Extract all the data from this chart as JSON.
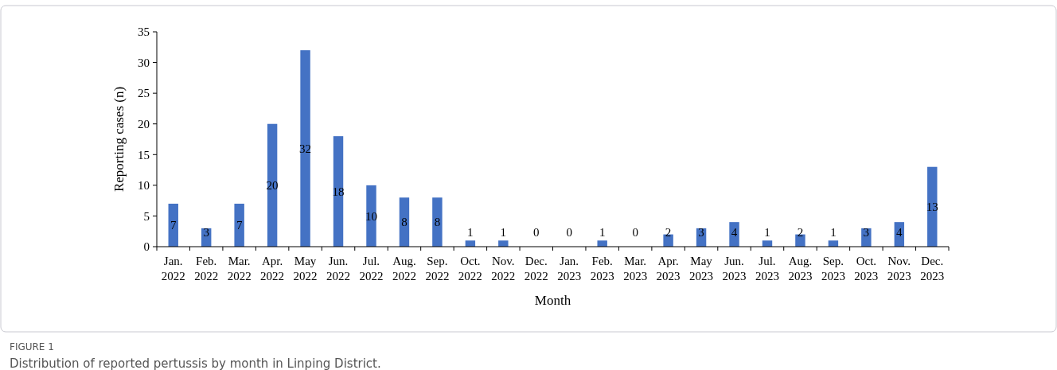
{
  "chart_data": {
    "type": "bar",
    "xlabel": "Month",
    "ylabel": "Reporting cases (n)",
    "categories": [
      "Jan. 2022",
      "Feb. 2022",
      "Mar. 2022",
      "Apr. 2022",
      "May 2022",
      "Jun. 2022",
      "Jul. 2022",
      "Aug. 2022",
      "Sep. 2022",
      "Oct. 2022",
      "Nov. 2022",
      "Dec. 2022",
      "Jan. 2023",
      "Feb. 2023",
      "Mar. 2023",
      "Apr. 2023",
      "May 2023",
      "Jun. 2023",
      "Jul. 2023",
      "Aug. 2023",
      "Sep. 2023",
      "Oct. 2023",
      "Nov. 2023",
      "Dec. 2023"
    ],
    "values": [
      7,
      3,
      7,
      20,
      32,
      18,
      10,
      8,
      8,
      1,
      1,
      0,
      0,
      1,
      0,
      2,
      3,
      4,
      1,
      2,
      1,
      3,
      4,
      13
    ],
    "color": "#4472c4",
    "ylim": [
      0,
      35
    ],
    "yticks": [
      0,
      5,
      10,
      15,
      20,
      25,
      30,
      35
    ],
    "grid": false,
    "data_labels": true,
    "annotations": [
      "FIGURE 1",
      "Distribution of reported pertussis by month in Linping District."
    ]
  }
}
